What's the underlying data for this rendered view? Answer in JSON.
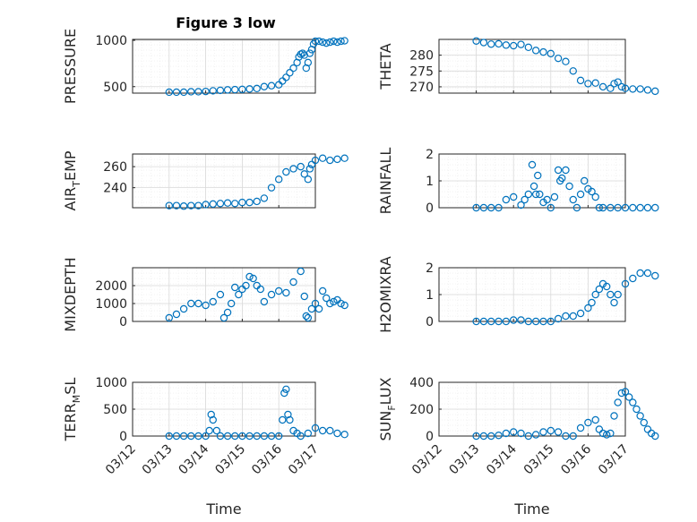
{
  "figure_title": "Figure 3 low",
  "xlabel": "Time",
  "date_ticks": [
    "03/12",
    "03/13",
    "03/14",
    "03/15",
    "03/16",
    "03/17"
  ],
  "marker_color": "#0072BD",
  "chart_data": [
    {
      "type": "scatter",
      "id": "pressure",
      "ylabel": "PRESSURE",
      "ylim": [
        430,
        1010
      ],
      "yticks": [
        500,
        1000
      ],
      "grid": true,
      "x": [
        1.0,
        1.2,
        1.4,
        1.6,
        1.8,
        2.0,
        2.2,
        2.4,
        2.6,
        2.8,
        3.0,
        3.2,
        3.4,
        3.6,
        3.8,
        4.0,
        4.1,
        4.2,
        4.3,
        4.4,
        4.5,
        4.55,
        4.6,
        4.65,
        4.7,
        4.75,
        4.8,
        4.85,
        4.9,
        4.95,
        5.0,
        5.1,
        5.2,
        5.3,
        5.4,
        5.5,
        5.6,
        5.7,
        5.8
      ],
      "y": [
        440,
        440,
        440,
        445,
        445,
        448,
        455,
        460,
        465,
        468,
        470,
        475,
        480,
        500,
        510,
        520,
        560,
        600,
        650,
        700,
        760,
        820,
        850,
        860,
        840,
        700,
        760,
        860,
        900,
        960,
        990,
        990,
        980,
        970,
        980,
        990,
        980,
        990,
        995
      ]
    },
    {
      "type": "scatter",
      "id": "theta",
      "ylabel": "THETA",
      "ylim": [
        268,
        285
      ],
      "yticks": [
        270,
        275,
        280
      ],
      "grid": true,
      "x": [
        1.0,
        1.2,
        1.4,
        1.6,
        1.8,
        2.0,
        2.2,
        2.4,
        2.6,
        2.8,
        3.0,
        3.2,
        3.4,
        3.6,
        3.8,
        4.0,
        4.2,
        4.4,
        4.6,
        4.7,
        4.8,
        4.9,
        5.0,
        5.2,
        5.4,
        5.6,
        5.8
      ],
      "y": [
        284.5,
        284,
        283.5,
        283.6,
        283.2,
        283,
        283.4,
        282.5,
        281.5,
        281,
        280.5,
        279,
        278,
        275,
        272,
        271,
        271.2,
        270,
        269.5,
        271,
        271.5,
        270,
        269.5,
        269.3,
        269.3,
        269,
        268.6
      ]
    },
    {
      "type": "scatter",
      "id": "air_temp",
      "ylabel": "AIR_TEMP",
      "ylim": [
        221,
        272
      ],
      "yticks": [
        240,
        260
      ],
      "grid": true,
      "x": [
        1.0,
        1.2,
        1.4,
        1.6,
        1.8,
        2.0,
        2.2,
        2.4,
        2.6,
        2.8,
        3.0,
        3.2,
        3.4,
        3.6,
        3.8,
        4.0,
        4.2,
        4.4,
        4.6,
        4.7,
        4.8,
        4.85,
        4.9,
        5.0,
        5.2,
        5.4,
        5.6,
        5.8
      ],
      "y": [
        223,
        223,
        222.5,
        223,
        223,
        224,
        224.5,
        225,
        225.5,
        225,
        226,
        226,
        227,
        230,
        240,
        248,
        255,
        258,
        260,
        253,
        248,
        258,
        262,
        266,
        268,
        266,
        267,
        268
      ]
    },
    {
      "type": "scatter",
      "id": "rainfall",
      "ylabel": "RAINFALL",
      "ylim": [
        0,
        2
      ],
      "yticks": [
        0,
        1,
        2
      ],
      "grid": true,
      "x": [
        1.0,
        1.2,
        1.4,
        1.6,
        1.8,
        2.0,
        2.2,
        2.3,
        2.4,
        2.5,
        2.55,
        2.6,
        2.65,
        2.7,
        2.8,
        2.9,
        3.0,
        3.1,
        3.2,
        3.25,
        3.3,
        3.4,
        3.5,
        3.6,
        3.7,
        3.8,
        3.9,
        4.0,
        4.1,
        4.2,
        4.3,
        4.4,
        4.6,
        4.8,
        5.0,
        5.2,
        5.4,
        5.6,
        5.8
      ],
      "y": [
        0,
        0,
        0,
        0,
        0.3,
        0.4,
        0.1,
        0.3,
        0.5,
        1.6,
        0.8,
        0.5,
        1.2,
        0.5,
        0.2,
        0.3,
        0,
        0.4,
        1.4,
        1.0,
        1.1,
        1.4,
        0.8,
        0.3,
        0,
        0.5,
        1.0,
        0.7,
        0.6,
        0.4,
        0,
        0,
        0,
        0,
        0,
        0,
        0,
        0,
        0
      ]
    },
    {
      "type": "scatter",
      "id": "mixdepth",
      "ylabel": "MIXDEPTH",
      "ylim": [
        0,
        3000
      ],
      "yticks": [
        0,
        1000,
        2000
      ],
      "grid": true,
      "x": [
        1.0,
        1.2,
        1.4,
        1.6,
        1.8,
        2.0,
        2.2,
        2.4,
        2.5,
        2.6,
        2.7,
        2.8,
        2.9,
        3.0,
        3.1,
        3.2,
        3.3,
        3.4,
        3.5,
        3.6,
        3.8,
        4.0,
        4.2,
        4.4,
        4.6,
        4.7,
        4.75,
        4.8,
        4.9,
        5.0,
        5.1,
        5.2,
        5.3,
        5.4,
        5.5,
        5.6,
        5.7,
        5.8
      ],
      "y": [
        200,
        400,
        700,
        1000,
        1000,
        900,
        1100,
        1500,
        200,
        500,
        1000,
        1900,
        1500,
        1800,
        2000,
        2500,
        2400,
        2000,
        1800,
        1100,
        1500,
        1700,
        1600,
        2200,
        2800,
        1400,
        300,
        200,
        700,
        1000,
        700,
        1700,
        1300,
        1000,
        1100,
        1200,
        1000,
        900
      ]
    },
    {
      "type": "scatter",
      "id": "h2omixra",
      "ylabel": "H2OMIXRA",
      "ylim": [
        0,
        2
      ],
      "yticks": [
        0,
        1,
        2
      ],
      "grid": true,
      "x": [
        1.0,
        1.2,
        1.4,
        1.6,
        1.8,
        2.0,
        2.2,
        2.4,
        2.6,
        2.8,
        3.0,
        3.2,
        3.4,
        3.6,
        3.8,
        4.0,
        4.1,
        4.2,
        4.3,
        4.4,
        4.5,
        4.6,
        4.7,
        4.8,
        5.0,
        5.2,
        5.4,
        5.6,
        5.8
      ],
      "y": [
        0,
        0,
        0,
        0,
        0,
        0.05,
        0.05,
        0,
        0,
        0,
        0,
        0.1,
        0.2,
        0.2,
        0.3,
        0.5,
        0.7,
        1.0,
        1.2,
        1.4,
        1.3,
        1.0,
        0.7,
        1.0,
        1.4,
        1.6,
        1.8,
        1.8,
        1.7
      ]
    },
    {
      "type": "scatter",
      "id": "terr_msl",
      "ylabel": "TERR_MSL",
      "ylim": [
        0,
        1000
      ],
      "yticks": [
        0,
        500,
        1000
      ],
      "grid": true,
      "x": [
        1.0,
        1.2,
        1.4,
        1.6,
        1.8,
        2.0,
        2.1,
        2.15,
        2.2,
        2.3,
        2.4,
        2.6,
        2.8,
        3.0,
        3.2,
        3.4,
        3.6,
        3.8,
        4.0,
        4.1,
        4.15,
        4.2,
        4.25,
        4.3,
        4.4,
        4.5,
        4.6,
        4.8,
        5.0,
        5.2,
        5.4,
        5.6,
        5.8
      ],
      "y": [
        0,
        0,
        0,
        0,
        0,
        0,
        100,
        400,
        300,
        100,
        0,
        0,
        0,
        0,
        0,
        0,
        0,
        0,
        0,
        300,
        800,
        870,
        400,
        300,
        100,
        50,
        0,
        50,
        150,
        100,
        100,
        50,
        30
      ]
    },
    {
      "type": "scatter",
      "id": "sun_flux",
      "ylabel": "SUN_FLUX",
      "ylim": [
        0,
        400
      ],
      "yticks": [
        0,
        200,
        400
      ],
      "grid": true,
      "x": [
        1.0,
        1.2,
        1.4,
        1.6,
        1.8,
        2.0,
        2.2,
        2.4,
        2.6,
        2.8,
        3.0,
        3.2,
        3.4,
        3.6,
        3.8,
        4.0,
        4.2,
        4.3,
        4.4,
        4.5,
        4.6,
        4.7,
        4.8,
        4.9,
        5.0,
        5.1,
        5.2,
        5.3,
        5.4,
        5.5,
        5.6,
        5.7,
        5.8
      ],
      "y": [
        0,
        0,
        0,
        5,
        20,
        30,
        20,
        0,
        10,
        30,
        40,
        30,
        0,
        0,
        60,
        100,
        120,
        50,
        20,
        10,
        20,
        150,
        250,
        320,
        330,
        290,
        250,
        200,
        150,
        100,
        50,
        20,
        0
      ]
    }
  ]
}
